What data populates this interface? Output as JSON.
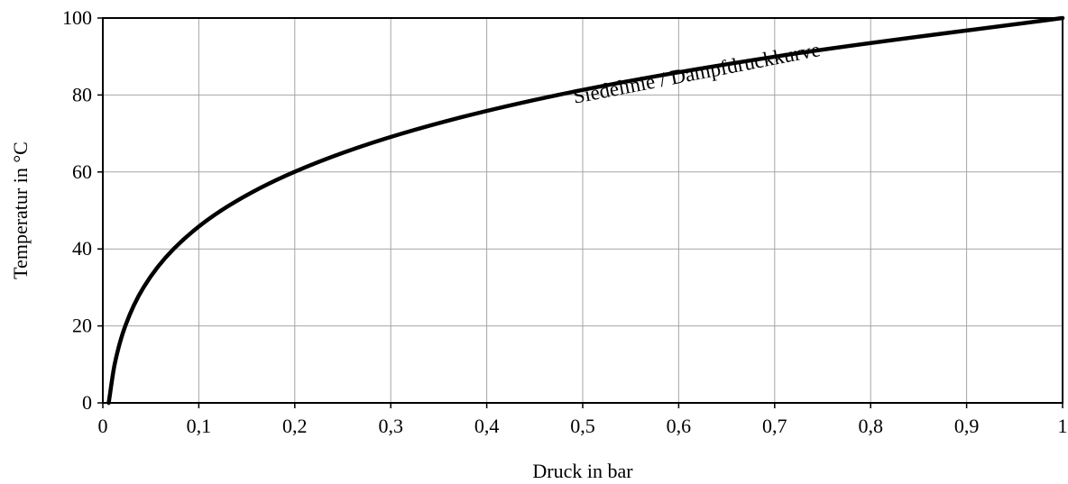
{
  "chart_data": {
    "type": "line",
    "xlabel": "Druck in bar",
    "ylabel": "Temperatur in °C",
    "xlim": [
      0,
      1
    ],
    "ylim": [
      0,
      100
    ],
    "xticks": [
      0,
      0.1,
      0.2,
      0.3,
      0.4,
      0.5,
      0.6,
      0.7,
      0.8,
      0.9,
      1
    ],
    "xtick_labels": [
      "0",
      "0,1",
      "0,2",
      "0,3",
      "0,4",
      "0,5",
      "0,6",
      "0,7",
      "0,8",
      "0,9",
      "1"
    ],
    "yticks": [
      0,
      20,
      40,
      60,
      80,
      100
    ],
    "ytick_labels": [
      "0",
      "20",
      "40",
      "60",
      "80",
      "100"
    ],
    "grid": true,
    "series": [
      {
        "name": "Siedelinie / Dampfdruckkurve",
        "x": [
          0.0061,
          0.0123,
          0.0234,
          0.0424,
          0.0738,
          0.1234,
          0.1994,
          0.3119,
          0.4739,
          0.7014,
          1.0
        ],
        "y": [
          0,
          10,
          20,
          30,
          40,
          50,
          60,
          70,
          80,
          90,
          100
        ]
      }
    ],
    "annotations": [
      {
        "text": "Siedelinie / Dampfdruckkurve",
        "x": 0.62,
        "y": 84,
        "rotation_deg": -11
      }
    ]
  }
}
